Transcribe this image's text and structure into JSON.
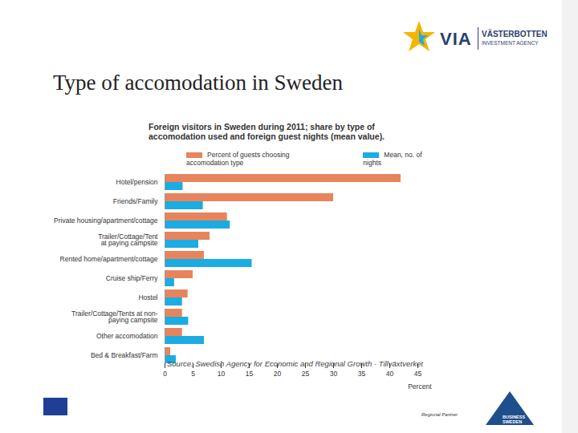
{
  "chart_data": {
    "type": "bar",
    "orientation": "horizontal",
    "title": "Foreign visitors in Sweden during 2011; share by type of accomodation used and foreign guest nights (mean value).",
    "categories": [
      "Hotel/pension",
      "Friends/Family",
      "Private housing/apartment/cottage",
      "Trailer/Cottage/Tent\nat paying campsite",
      "Rented home/apartment/cottage",
      "Cruise ship/Ferry",
      "Hostel",
      "Trailer/Cottage/Tents at non-\npaying campsite",
      "Other accomodation",
      "Bed & Breakfast/Farm"
    ],
    "series": [
      {
        "name": "Percent of guests choosing accomodation type",
        "color": "#e8845c",
        "values": [
          42,
          30,
          11.1,
          8,
          7,
          5,
          4.1,
          3.1,
          3.1,
          1
        ]
      },
      {
        "name": "Mean, no. of nights",
        "color": "#1aace3",
        "values": [
          3.2,
          6.8,
          11.6,
          6,
          15.5,
          1.7,
          3.1,
          4.2,
          7,
          2
        ]
      }
    ],
    "x_label": "Percent",
    "xlim": [
      0,
      45
    ],
    "xticks": [
      0,
      5,
      10,
      15,
      20,
      25,
      30,
      35,
      40,
      45
    ],
    "grid": false,
    "legend": "top",
    "source": "Source: Swedish Agency for Economic and Regional Growth - Tillväxtverket"
  },
  "slide": {
    "title": "Type of accomodation in Sweden",
    "logo": [
      "VIA",
      "VÄSTERBOTTEN",
      "INVESTMENT AGENCY"
    ],
    "footer": [
      "Regional Partner",
      "BUSINESS SWEDEN"
    ]
  }
}
